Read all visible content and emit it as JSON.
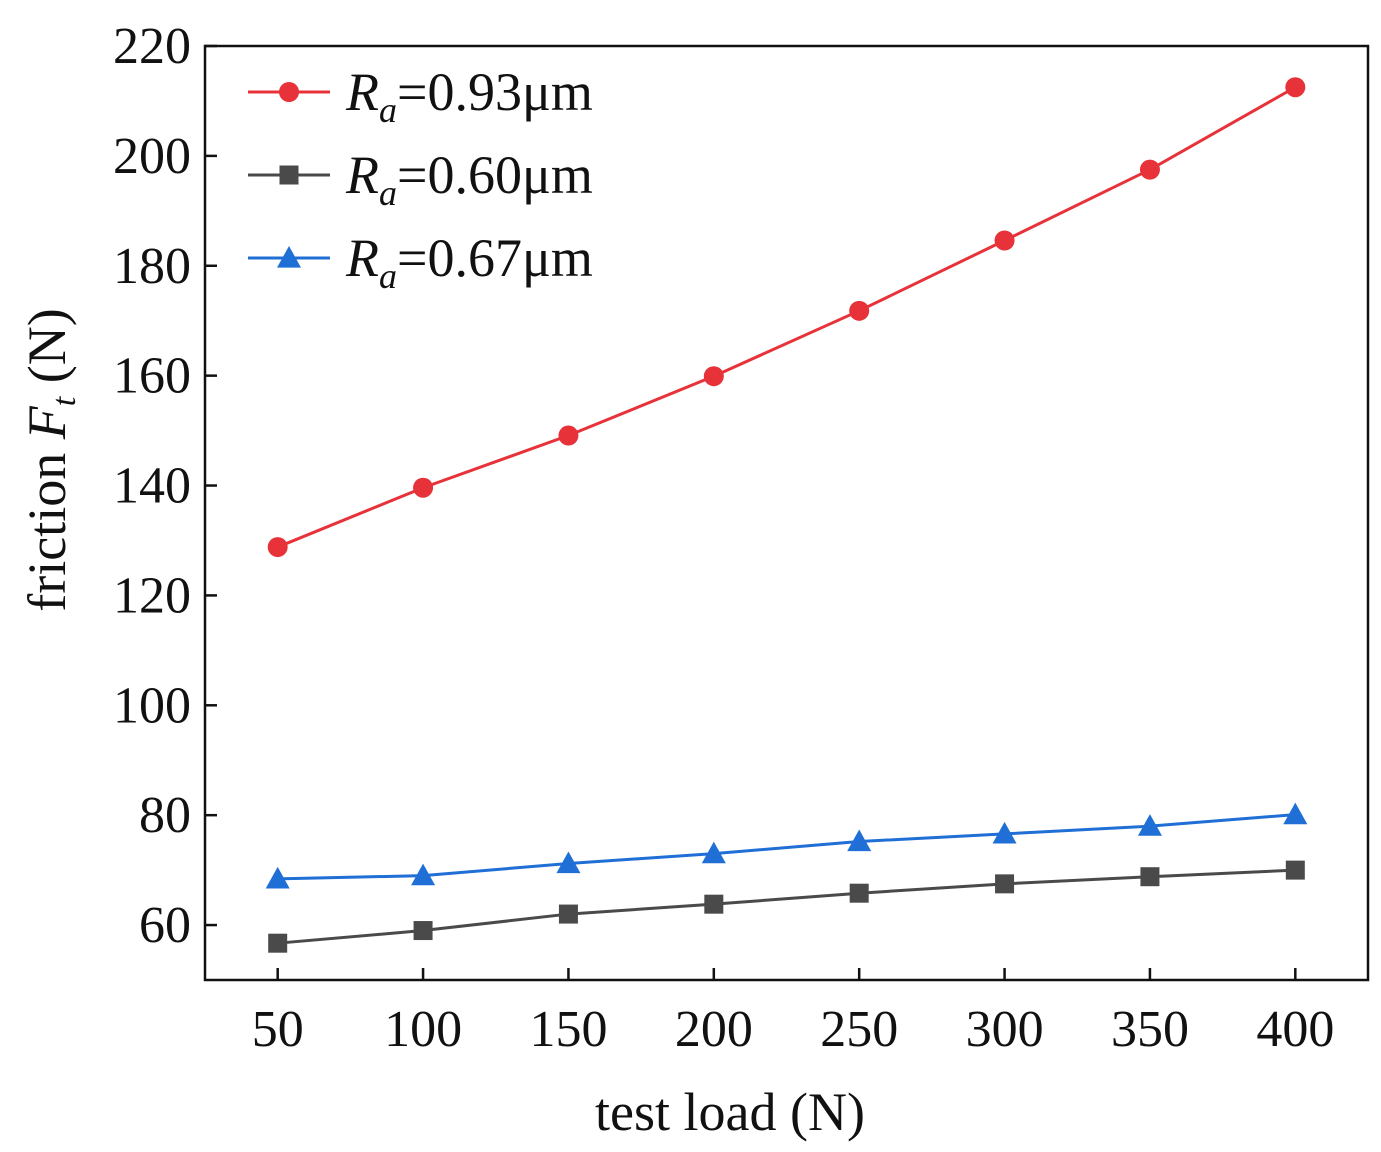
{
  "chart_data": {
    "type": "line",
    "title": "",
    "xlabel": "test load (N)",
    "ylabel": {
      "prefix": "friction ",
      "symbol": "F",
      "subscript": "t",
      "suffix": " (N)"
    },
    "x": [
      50,
      100,
      150,
      200,
      250,
      300,
      350,
      400
    ],
    "xlim": [
      25,
      425
    ],
    "ylim": [
      50,
      220
    ],
    "xticks": [
      50,
      100,
      150,
      200,
      250,
      300,
      350,
      400
    ],
    "yticks": [
      60,
      80,
      100,
      120,
      140,
      160,
      180,
      200,
      220
    ],
    "grid": false,
    "legend_position": "top-left",
    "series": [
      {
        "name": "Ra=0.93μm",
        "label_symbol": "R",
        "label_subscript": "a",
        "label_value": "=0.93μm",
        "color": "#e8323a",
        "marker": "circle",
        "values": [
          128.8,
          139.6,
          149.1,
          159.9,
          171.8,
          184.6,
          197.5,
          212.5
        ]
      },
      {
        "name": "Ra=0.60μm",
        "label_symbol": "R",
        "label_subscript": "a",
        "label_value": "=0.60μm",
        "color": "#4a4a4a",
        "marker": "square",
        "values": [
          56.7,
          59.0,
          62.0,
          63.8,
          65.8,
          67.5,
          68.8,
          70.0
        ]
      },
      {
        "name": "Ra=0.67μm",
        "label_symbol": "R",
        "label_subscript": "a",
        "label_value": "=0.67μm",
        "color": "#1f6fd6",
        "marker": "triangle",
        "values": [
          68.4,
          69.0,
          71.2,
          73.0,
          75.2,
          76.6,
          78.0,
          80.1
        ]
      }
    ]
  }
}
